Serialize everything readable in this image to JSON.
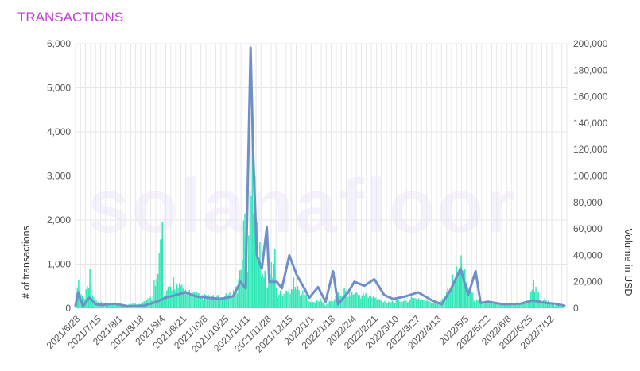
{
  "header": {
    "title": "TRANSACTIONS"
  },
  "watermark": "solanafloor",
  "colors": {
    "bars": "#2ee8b6",
    "line": "#6f8fc9",
    "title": "#c33dd6"
  },
  "chart_data": {
    "type": "bar",
    "title": "TRANSACTIONS",
    "ylabel": "# of transactions",
    "y2label": "Volume in USD",
    "ylim": [
      0,
      6000
    ],
    "y2lim": [
      0,
      200000
    ],
    "yticks": [
      "0",
      "1,000",
      "2,000",
      "3,000",
      "4,000",
      "5,000",
      "6,000"
    ],
    "y2ticks": [
      "0",
      "20,000",
      "40,000",
      "60,000",
      "80,000",
      "100,000",
      "120,000",
      "140,000",
      "160,000",
      "180,000",
      "200,000"
    ],
    "xticks": [
      "2021/6/28",
      "2021/7/15",
      "2021/8/1",
      "2021/8/18",
      "2021/9/4",
      "2021/9/21",
      "2021/10/8",
      "2021/10/25",
      "2021/11/11",
      "2021/11/28",
      "2021/12/15",
      "2022/1/1",
      "2022/1/18",
      "2022/2/4",
      "2022/2/21",
      "2022/3/10",
      "2022/3/27",
      "2022/4/13",
      "2022/5/5",
      "2022/5/22",
      "2022/6/8",
      "2022/6/25",
      "2022/7/12"
    ],
    "grid": true,
    "series": [
      {
        "axis": "left",
        "type": "bar",
        "points": [
          [
            "2021/6/24",
            0
          ],
          [
            "2021/6/26",
            650
          ],
          [
            "2021/7/1",
            250
          ],
          [
            "2021/7/5",
            900
          ],
          [
            "2021/7/10",
            200
          ],
          [
            "2021/7/20",
            120
          ],
          [
            "2021/8/1",
            100
          ],
          [
            "2021/8/15",
            150
          ],
          [
            "2021/8/24",
            300
          ],
          [
            "2021/9/1",
            1950
          ],
          [
            "2021/9/2",
            280
          ],
          [
            "2021/9/10",
            700
          ],
          [
            "2021/9/20",
            500
          ],
          [
            "2021/10/1",
            350
          ],
          [
            "2021/10/15",
            300
          ],
          [
            "2021/10/25",
            350
          ],
          [
            "2021/11/1",
            600
          ],
          [
            "2021/11/6",
            2150
          ],
          [
            "2021/11/9",
            1200
          ],
          [
            "2021/11/12",
            4450
          ],
          [
            "2021/11/14",
            3000
          ],
          [
            "2021/11/18",
            1500
          ],
          [
            "2021/11/22",
            850
          ],
          [
            "2021/11/25",
            800
          ],
          [
            "2021/11/30",
            1350
          ],
          [
            "2021/12/2",
            400
          ],
          [
            "2021/12/10",
            450
          ],
          [
            "2021/12/15",
            700
          ],
          [
            "2021/12/20",
            500
          ],
          [
            "2022/1/1",
            150
          ],
          [
            "2022/1/5",
            250
          ],
          [
            "2022/1/10",
            100
          ],
          [
            "2022/1/25",
            500
          ],
          [
            "2022/2/4",
            400
          ],
          [
            "2022/2/15",
            350
          ],
          [
            "2022/2/25",
            200
          ],
          [
            "2022/3/10",
            200
          ],
          [
            "2022/3/25",
            300
          ],
          [
            "2022/4/5",
            150
          ],
          [
            "2022/4/13",
            250
          ],
          [
            "2022/4/28",
            1200
          ],
          [
            "2022/5/1",
            900
          ],
          [
            "2022/5/10",
            200
          ],
          [
            "2022/5/22",
            150
          ],
          [
            "2022/6/8",
            100
          ],
          [
            "2022/6/22",
            200
          ],
          [
            "2022/6/25",
            650
          ],
          [
            "2022/7/1",
            300
          ],
          [
            "2022/7/12",
            100
          ],
          [
            "2022/7/20",
            50
          ]
        ]
      },
      {
        "axis": "right",
        "type": "line",
        "points": [
          [
            "2021/6/24",
            2000
          ],
          [
            "2021/6/26",
            12000
          ],
          [
            "2021/6/30",
            1500
          ],
          [
            "2021/7/5",
            8000
          ],
          [
            "2021/7/10",
            3000
          ],
          [
            "2021/7/15",
            2500
          ],
          [
            "2021/7/25",
            3500
          ],
          [
            "2021/8/5",
            1500
          ],
          [
            "2021/8/18",
            2000
          ],
          [
            "2021/8/28",
            5000
          ],
          [
            "2021/9/4",
            8000
          ],
          [
            "2021/9/12",
            10000
          ],
          [
            "2021/9/20",
            12000
          ],
          [
            "2021/9/28",
            9000
          ],
          [
            "2021/10/8",
            8000
          ],
          [
            "2021/10/18",
            7000
          ],
          [
            "2021/10/28",
            9000
          ],
          [
            "2021/11/3",
            20000
          ],
          [
            "2021/11/7",
            15000
          ],
          [
            "2021/11/11",
            197000
          ],
          [
            "2021/11/13",
            120000
          ],
          [
            "2021/11/16",
            40000
          ],
          [
            "2021/11/20",
            30000
          ],
          [
            "2021/11/24",
            61000
          ],
          [
            "2021/11/26",
            20000
          ],
          [
            "2021/12/2",
            20000
          ],
          [
            "2021/12/6",
            15000
          ],
          [
            "2021/12/12",
            40000
          ],
          [
            "2021/12/18",
            25000
          ],
          [
            "2021/12/24",
            15000
          ],
          [
            "2021/12/28",
            8000
          ],
          [
            "2022/1/4",
            16000
          ],
          [
            "2022/1/10",
            5000
          ],
          [
            "2022/1/16",
            28000
          ],
          [
            "2022/1/20",
            3000
          ],
          [
            "2022/1/28",
            12000
          ],
          [
            "2022/2/2",
            20000
          ],
          [
            "2022/2/10",
            17000
          ],
          [
            "2022/2/18",
            22000
          ],
          [
            "2022/2/26",
            10000
          ],
          [
            "2022/3/5",
            7000
          ],
          [
            "2022/3/15",
            9000
          ],
          [
            "2022/3/25",
            12000
          ],
          [
            "2022/4/5",
            6000
          ],
          [
            "2022/4/13",
            3000
          ],
          [
            "2022/4/20",
            14000
          ],
          [
            "2022/4/28",
            30000
          ],
          [
            "2022/5/4",
            10000
          ],
          [
            "2022/5/10",
            28000
          ],
          [
            "2022/5/14",
            4000
          ],
          [
            "2022/5/20",
            5000
          ],
          [
            "2022/6/1",
            3000
          ],
          [
            "2022/6/15",
            3500
          ],
          [
            "2022/6/25",
            6000
          ],
          [
            "2022/7/1",
            4500
          ],
          [
            "2022/7/12",
            3500
          ],
          [
            "2022/7/20",
            2000
          ]
        ]
      }
    ]
  }
}
